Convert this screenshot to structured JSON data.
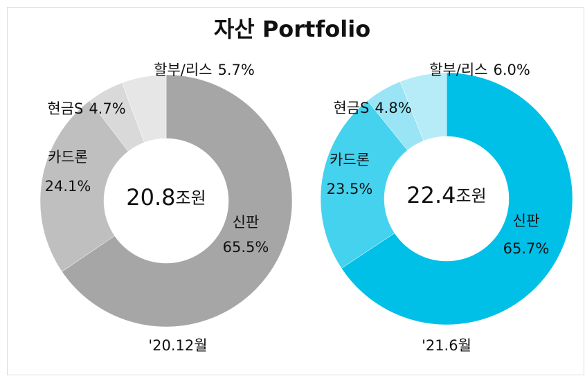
{
  "title": "자산 Portfolio",
  "chart_data": [
    {
      "type": "donut",
      "caption": "'20.12월",
      "total": 20.8,
      "total_unit": "조원",
      "categories": [
        "신판",
        "카드론",
        "현금S",
        "할부/리스"
      ],
      "values": [
        65.5,
        24.1,
        4.7,
        5.7
      ],
      "value_labels": [
        "65.5%",
        "24.1%",
        "4.7%",
        "5.7%"
      ],
      "colors": [
        "#a6a6a6",
        "#bfbfbf",
        "#d9d9d9",
        "#e6e6e6"
      ]
    },
    {
      "type": "donut",
      "caption": "'21.6월",
      "total": 22.4,
      "total_unit": "조원",
      "categories": [
        "신판",
        "카드론",
        "현금S",
        "할부/리스"
      ],
      "values": [
        65.7,
        23.5,
        4.8,
        6.0
      ],
      "value_labels": [
        "65.7%",
        "23.5%",
        "4.8%",
        "6.0%"
      ],
      "colors": [
        "#00c0e8",
        "#44d2ee",
        "#99e4f5",
        "#b5ecf8"
      ]
    }
  ]
}
